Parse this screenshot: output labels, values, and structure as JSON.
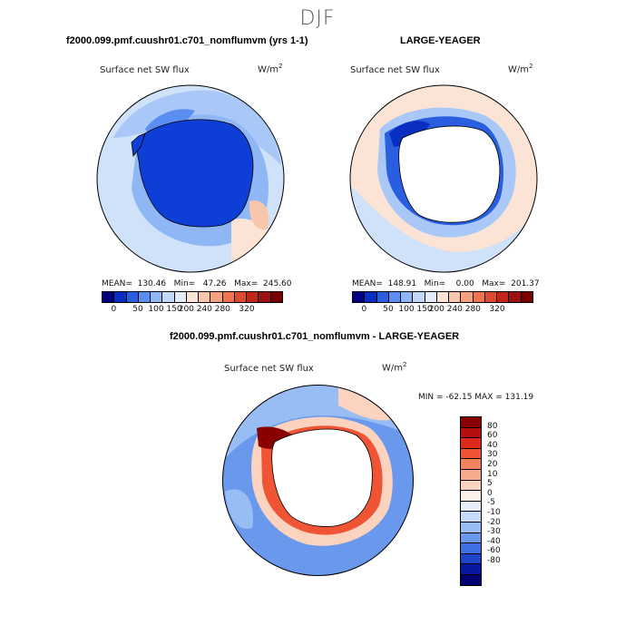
{
  "figure": {
    "season": "DJF"
  },
  "panel_left": {
    "title": "f2000.099.pmf.cuushr01.c701_nomflumvm (yrs 1-1)",
    "variable": "Surface net SW flux",
    "units": "W/m",
    "units_exp": "2",
    "stats": "MEAN=  130.46   Min=   47.26   Max=  245.60",
    "colorbar_ticks": [
      "0",
      "50",
      "100",
      "150",
      "200",
      "240",
      "280",
      "320"
    ]
  },
  "panel_right": {
    "title": "LARGE-YEAGER",
    "variable": "Surface net SW flux",
    "units": "W/m",
    "units_exp": "2",
    "stats": "MEAN=  148.91   Min=    0.00   Max=  201.37",
    "colorbar_ticks": [
      "0",
      "50",
      "100",
      "150",
      "200",
      "240",
      "280",
      "320"
    ]
  },
  "panel_diff": {
    "title": "f2000.099.pmf.cuushr01.c701_nomflumvm - LARGE-YEAGER",
    "variable": "Surface net SW flux",
    "units": "W/m",
    "units_exp": "2",
    "stats": "MIN = -62.15 MAX = 131.19",
    "colorbar_ticks": [
      "80",
      "60",
      "40",
      "30",
      "20",
      "10",
      "5",
      "0",
      "-5",
      "-10",
      "-20",
      "-30",
      "-40",
      "-60",
      "-80"
    ]
  },
  "colors": {
    "abs_scale": [
      "#000080",
      "#0a2fc0",
      "#2a5ee0",
      "#5a8ef0",
      "#8fb6f5",
      "#c2d8f8",
      "#e2ecfa",
      "#fbe4d6",
      "#f8c6aa",
      "#f5a07e",
      "#ef7550",
      "#e04a2c",
      "#c2261a",
      "#9b1010",
      "#7a0000"
    ],
    "diff_scale": [
      "#8a0000",
      "#b50f0f",
      "#de2a1a",
      "#ef5534",
      "#f5825f",
      "#f8ab8c",
      "#fbd3bf",
      "#fdf0e6",
      "#e6eefa",
      "#c6dafa",
      "#98bcf4",
      "#6a98ec",
      "#3d70e0",
      "#1c45c8",
      "#0618a0",
      "#000070"
    ],
    "ocean_light": "#cfe2f9",
    "ocean_mid": "#8fb6f5",
    "antarctica": "#0d3fd6",
    "land_white": "#ffffff"
  }
}
